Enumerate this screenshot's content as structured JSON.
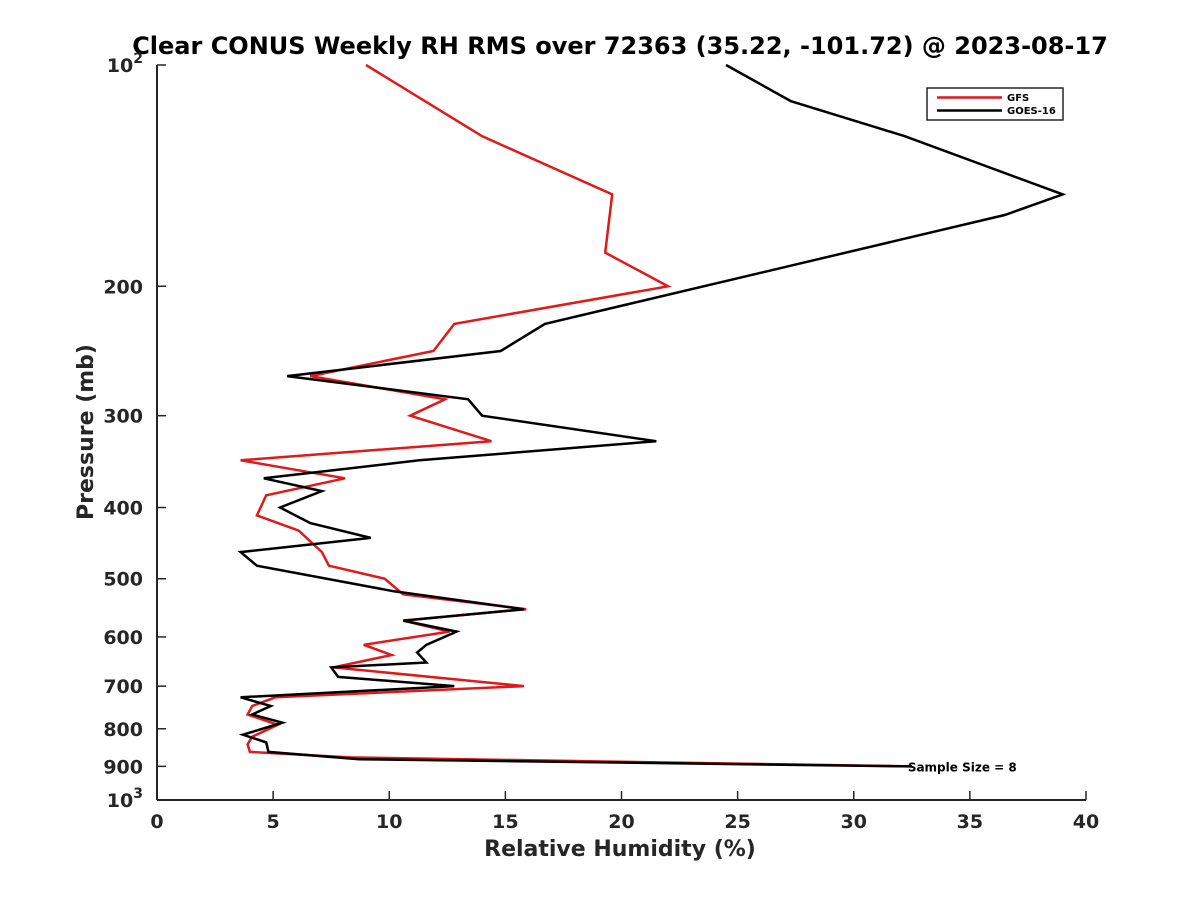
{
  "chart_data": {
    "type": "line",
    "title": "Clear CONUS Weekly RH RMS over 72363 (35.22, -101.72) @ 2023-08-17",
    "xlabel": "Relative Humidity (%)",
    "ylabel": "Pressure (mb)",
    "xlim": [
      0,
      40
    ],
    "ylim": [
      100,
      1000
    ],
    "yscale": "log",
    "y_reversed": true,
    "grid": false,
    "legend_position": "top-right",
    "x_ticks": [
      0,
      5,
      10,
      15,
      20,
      25,
      30,
      35,
      40
    ],
    "x_tick_labels": [
      "0",
      "5",
      "10",
      "15",
      "20",
      "25",
      "30",
      "35",
      "40"
    ],
    "y_ticks": [
      100,
      200,
      300,
      400,
      500,
      600,
      700,
      800,
      900,
      1000
    ],
    "y_tick_labels": [
      {
        "base": "10",
        "sup": "2"
      },
      {
        "base": "200",
        "sup": ""
      },
      {
        "base": "300",
        "sup": ""
      },
      {
        "base": "400",
        "sup": ""
      },
      {
        "base": "500",
        "sup": ""
      },
      {
        "base": "600",
        "sup": ""
      },
      {
        "base": "700",
        "sup": ""
      },
      {
        "base": "800",
        "sup": ""
      },
      {
        "base": "900",
        "sup": ""
      },
      {
        "base": "10",
        "sup": "3"
      }
    ],
    "annotation": "Sample Size = 8",
    "annotation_anchor": {
      "x": 32.5,
      "y": 900
    },
    "series": [
      {
        "name": "GFS",
        "color": "#e0191b",
        "points": [
          {
            "x": 9.0,
            "y": 100
          },
          {
            "x": 14.0,
            "y": 125
          },
          {
            "x": 19.6,
            "y": 150
          },
          {
            "x": 19.3,
            "y": 180
          },
          {
            "x": 22.0,
            "y": 200
          },
          {
            "x": 12.8,
            "y": 225
          },
          {
            "x": 11.9,
            "y": 245
          },
          {
            "x": 6.6,
            "y": 265
          },
          {
            "x": 12.4,
            "y": 285
          },
          {
            "x": 10.9,
            "y": 300
          },
          {
            "x": 14.4,
            "y": 325
          },
          {
            "x": 3.6,
            "y": 345
          },
          {
            "x": 8.1,
            "y": 365
          },
          {
            "x": 4.7,
            "y": 385
          },
          {
            "x": 4.3,
            "y": 410
          },
          {
            "x": 6.1,
            "y": 430
          },
          {
            "x": 7.1,
            "y": 460
          },
          {
            "x": 7.4,
            "y": 480
          },
          {
            "x": 9.8,
            "y": 500
          },
          {
            "x": 10.6,
            "y": 525
          },
          {
            "x": 15.9,
            "y": 550
          },
          {
            "x": 10.6,
            "y": 570
          },
          {
            "x": 12.6,
            "y": 590
          },
          {
            "x": 8.9,
            "y": 615
          },
          {
            "x": 10.1,
            "y": 635
          },
          {
            "x": 7.6,
            "y": 660
          },
          {
            "x": 15.8,
            "y": 700
          },
          {
            "x": 5.1,
            "y": 725
          },
          {
            "x": 4.1,
            "y": 745
          },
          {
            "x": 3.9,
            "y": 765
          },
          {
            "x": 5.2,
            "y": 790
          },
          {
            "x": 4.1,
            "y": 820
          },
          {
            "x": 3.9,
            "y": 840
          },
          {
            "x": 4.0,
            "y": 860
          },
          {
            "x": 8.3,
            "y": 875
          },
          {
            "x": 32.5,
            "y": 900
          }
        ]
      },
      {
        "name": "GOES-16",
        "color": "#000000",
        "points": [
          {
            "x": 24.5,
            "y": 100
          },
          {
            "x": 27.3,
            "y": 112
          },
          {
            "x": 32.2,
            "y": 125
          },
          {
            "x": 39.0,
            "y": 150
          },
          {
            "x": 36.5,
            "y": 160
          },
          {
            "x": 16.7,
            "y": 225
          },
          {
            "x": 14.8,
            "y": 245
          },
          {
            "x": 5.6,
            "y": 265
          },
          {
            "x": 13.4,
            "y": 285
          },
          {
            "x": 14.0,
            "y": 300
          },
          {
            "x": 21.5,
            "y": 325
          },
          {
            "x": 11.3,
            "y": 345
          },
          {
            "x": 4.6,
            "y": 365
          },
          {
            "x": 7.1,
            "y": 380
          },
          {
            "x": 5.3,
            "y": 400
          },
          {
            "x": 6.6,
            "y": 420
          },
          {
            "x": 9.2,
            "y": 440
          },
          {
            "x": 3.6,
            "y": 460
          },
          {
            "x": 4.3,
            "y": 480
          },
          {
            "x": 10.2,
            "y": 520
          },
          {
            "x": 15.8,
            "y": 550
          },
          {
            "x": 10.6,
            "y": 570
          },
          {
            "x": 12.9,
            "y": 590
          },
          {
            "x": 11.6,
            "y": 615
          },
          {
            "x": 11.2,
            "y": 630
          },
          {
            "x": 11.6,
            "y": 650
          },
          {
            "x": 7.5,
            "y": 660
          },
          {
            "x": 7.8,
            "y": 680
          },
          {
            "x": 12.8,
            "y": 700
          },
          {
            "x": 3.6,
            "y": 725
          },
          {
            "x": 4.9,
            "y": 745
          },
          {
            "x": 4.1,
            "y": 765
          },
          {
            "x": 5.4,
            "y": 785
          },
          {
            "x": 3.7,
            "y": 815
          },
          {
            "x": 4.7,
            "y": 835
          },
          {
            "x": 4.8,
            "y": 860
          },
          {
            "x": 8.7,
            "y": 880
          },
          {
            "x": 32.5,
            "y": 900
          }
        ]
      }
    ]
  }
}
